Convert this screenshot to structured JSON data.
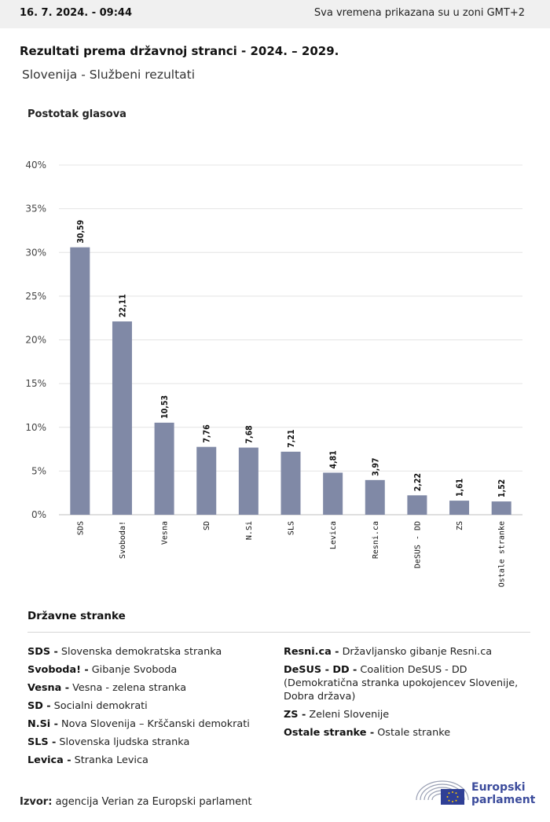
{
  "header": {
    "date": "16. 7. 2024. - 09:44",
    "timezone_note": "Sva vremena prikazana su u zoni GMT+2"
  },
  "title": "Rezultati prema državnoj stranci - 2024. – 2029.",
  "subtitle": "Slovenija - Službeni rezultati",
  "colors": {
    "bar": "#8089a6",
    "grid": "#e4e4e4",
    "logo": "#3c4c9c",
    "topbar": "#f0f0f0"
  },
  "chart_data": {
    "type": "bar",
    "ylabel": "Postotak glasova",
    "categories": [
      "SDS",
      "Svoboda!",
      "Vesna",
      "SD",
      "N.Si",
      "SLS",
      "Levica",
      "Resni.ca",
      "DeSUS - DD",
      "ZS",
      "Ostale stranke"
    ],
    "values": [
      30.59,
      22.11,
      10.53,
      7.76,
      7.68,
      7.21,
      4.81,
      3.97,
      2.22,
      1.61,
      1.52
    ],
    "value_labels": [
      "30,59",
      "22,11",
      "10,53",
      "7,76",
      "7,68",
      "7,21",
      "4,81",
      "3,97",
      "2,22",
      "1,61",
      "1,52"
    ],
    "ylim": [
      0,
      40
    ],
    "yticks": [
      0,
      5,
      10,
      15,
      20,
      25,
      30,
      35,
      40
    ],
    "ytick_labels": [
      "0%",
      "5%",
      "10%",
      "15%",
      "20%",
      "25%",
      "30%",
      "35%",
      "40%"
    ],
    "grid": true
  },
  "legend": {
    "title": "Državne stranke",
    "left": [
      {
        "abbr": "SDS -",
        "name": "Slovenska demokratska stranka"
      },
      {
        "abbr": "Svoboda! -",
        "name": "Gibanje Svoboda"
      },
      {
        "abbr": "Vesna -",
        "name": "Vesna - zelena stranka"
      },
      {
        "abbr": "SD -",
        "name": "Socialni demokrati"
      },
      {
        "abbr": "N.Si -",
        "name": "Nova Slovenija – Krščanski demokrati"
      },
      {
        "abbr": "SLS -",
        "name": "Slovenska ljudska stranka"
      },
      {
        "abbr": "Levica -",
        "name": "Stranka Levica"
      }
    ],
    "right": [
      {
        "abbr": "Resni.ca -",
        "name": "Državljansko gibanje Resni.ca"
      },
      {
        "abbr": "DeSUS - DD -",
        "name": "Coalition DeSUS - DD (Demokratična stranka upokojencev Slovenije, Dobra država)"
      },
      {
        "abbr": "ZS -",
        "name": "Zeleni Slovenije"
      },
      {
        "abbr": "Ostale stranke -",
        "name": "Ostale stranke"
      }
    ]
  },
  "source": {
    "label": "Izvor:",
    "text": "agencija Verian za Europski parlament"
  },
  "logo": {
    "line1": "Europski",
    "line2": "parlament",
    "icon": "european-parliament-logo-icon"
  }
}
